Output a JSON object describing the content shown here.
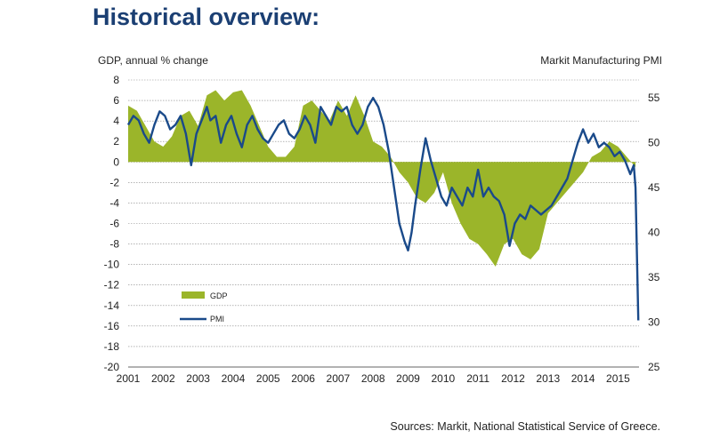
{
  "header": {
    "title": "Historical overview:"
  },
  "footer": {
    "source": "Sources: Markit, National Statistical Service of Greece."
  },
  "colors": {
    "title": "#1b3f73",
    "gdp": "#9bb52a",
    "pmi": "#1a4a8a",
    "grid": "#888888"
  },
  "chart_data": {
    "type": "area",
    "ylabel_left": "GDP, annual % change",
    "ylabel_right": "Markit Manufacturing PMI",
    "x_ticks": [
      "2001",
      "2002",
      "2003",
      "2004",
      "2005",
      "2006",
      "2007",
      "2008",
      "2009",
      "2010",
      "2011",
      "2012",
      "2013",
      "2014",
      "2015"
    ],
    "ylim_left": [
      -20,
      8
    ],
    "y_ticks_left": [
      8,
      6,
      4,
      2,
      0,
      -2,
      -4,
      -6,
      -8,
      -10,
      -12,
      -14,
      -16,
      -18,
      -20
    ],
    "ylim_right": [
      25,
      57
    ],
    "y_ticks_right": [
      55,
      50,
      45,
      40,
      35,
      30,
      25
    ],
    "grid": true,
    "legend_position": "lower-left",
    "series": [
      {
        "name": "GDP",
        "axis": "left",
        "x": [
          2001.0,
          2001.25,
          2001.5,
          2001.75,
          2002.0,
          2002.25,
          2002.5,
          2002.75,
          2003.0,
          2003.25,
          2003.5,
          2003.75,
          2004.0,
          2004.25,
          2004.5,
          2004.75,
          2005.0,
          2005.25,
          2005.5,
          2005.75,
          2006.0,
          2006.25,
          2006.5,
          2006.75,
          2007.0,
          2007.25,
          2007.5,
          2007.75,
          2008.0,
          2008.25,
          2008.5,
          2008.75,
          2009.0,
          2009.25,
          2009.5,
          2009.75,
          2010.0,
          2010.25,
          2010.5,
          2010.75,
          2011.0,
          2011.25,
          2011.5,
          2011.75,
          2012.0,
          2012.25,
          2012.5,
          2012.75,
          2013.0,
          2013.25,
          2013.5,
          2013.75,
          2014.0,
          2014.25,
          2014.5,
          2014.75,
          2015.0,
          2015.25,
          2015.5
        ],
        "values": [
          5.5,
          5.0,
          3.5,
          2.0,
          1.5,
          2.5,
          4.5,
          5.0,
          3.5,
          6.5,
          7.0,
          6.0,
          6.8,
          7.0,
          5.5,
          3.5,
          1.5,
          0.5,
          0.5,
          1.5,
          5.5,
          6.0,
          5.0,
          4.0,
          6.0,
          4.5,
          6.5,
          4.5,
          2.0,
          1.5,
          0.5,
          -1.0,
          -2.0,
          -3.5,
          -4.0,
          -3.0,
          -1.0,
          -4.0,
          -6.0,
          -7.5,
          -8.0,
          -9.0,
          -10.2,
          -8.0,
          -7.5,
          -9.0,
          -9.5,
          -8.5,
          -5.0,
          -4.0,
          -3.0,
          -2.0,
          -1.0,
          0.5,
          1.0,
          2.0,
          1.5,
          0.5,
          -0.5
        ]
      },
      {
        "name": "PMI",
        "axis": "right",
        "x": [
          2001.0,
          2001.15,
          2001.3,
          2001.45,
          2001.6,
          2001.75,
          2001.9,
          2002.05,
          2002.2,
          2002.35,
          2002.5,
          2002.65,
          2002.8,
          2002.95,
          2003.1,
          2003.25,
          2003.35,
          2003.5,
          2003.65,
          2003.8,
          2003.95,
          2004.1,
          2004.25,
          2004.4,
          2004.55,
          2004.7,
          2004.85,
          2005.0,
          2005.15,
          2005.3,
          2005.45,
          2005.6,
          2005.75,
          2005.9,
          2006.05,
          2006.2,
          2006.35,
          2006.5,
          2006.65,
          2006.8,
          2006.95,
          2007.1,
          2007.25,
          2007.4,
          2007.55,
          2007.7,
          2007.85,
          2008.0,
          2008.15,
          2008.3,
          2008.45,
          2008.6,
          2008.75,
          2008.9,
          2009.0,
          2009.1,
          2009.2,
          2009.35,
          2009.5,
          2009.65,
          2009.8,
          2009.95,
          2010.1,
          2010.25,
          2010.4,
          2010.55,
          2010.7,
          2010.85,
          2011.0,
          2011.15,
          2011.3,
          2011.45,
          2011.6,
          2011.75,
          2011.9,
          2012.05,
          2012.2,
          2012.35,
          2012.5,
          2012.65,
          2012.8,
          2012.95,
          2013.1,
          2013.25,
          2013.4,
          2013.55,
          2013.7,
          2013.85,
          2014.0,
          2014.15,
          2014.3,
          2014.45,
          2014.6,
          2014.75,
          2014.9,
          2015.05,
          2015.2,
          2015.35,
          2015.45,
          2015.5,
          2015.58
        ],
        "values": [
          52,
          53,
          52.5,
          51,
          50,
          52,
          53.5,
          53,
          51.5,
          52,
          53,
          51,
          47.5,
          51,
          52.5,
          54,
          52.5,
          53,
          50,
          52,
          53,
          51,
          49.5,
          52,
          53,
          51.5,
          50.5,
          50,
          51,
          52,
          52.5,
          51,
          50.5,
          51.5,
          53,
          52,
          50,
          54,
          53,
          52,
          54,
          53.5,
          54,
          52,
          51,
          52,
          54,
          55,
          54,
          52,
          49,
          45,
          41,
          39,
          38,
          40,
          43,
          47,
          50.5,
          48,
          46,
          44,
          43,
          45,
          44,
          43,
          45,
          44,
          47,
          44,
          45,
          44,
          43.5,
          42,
          38.5,
          41,
          42,
          41.5,
          43,
          42.5,
          42,
          42.5,
          43,
          44,
          45,
          46,
          48,
          50,
          51.5,
          50,
          51,
          49.5,
          50,
          49.5,
          48.5,
          49,
          48,
          46.5,
          47.5,
          45,
          30.2
        ]
      }
    ]
  },
  "legend": [
    {
      "label": "GDP"
    },
    {
      "label": "PMI"
    }
  ]
}
